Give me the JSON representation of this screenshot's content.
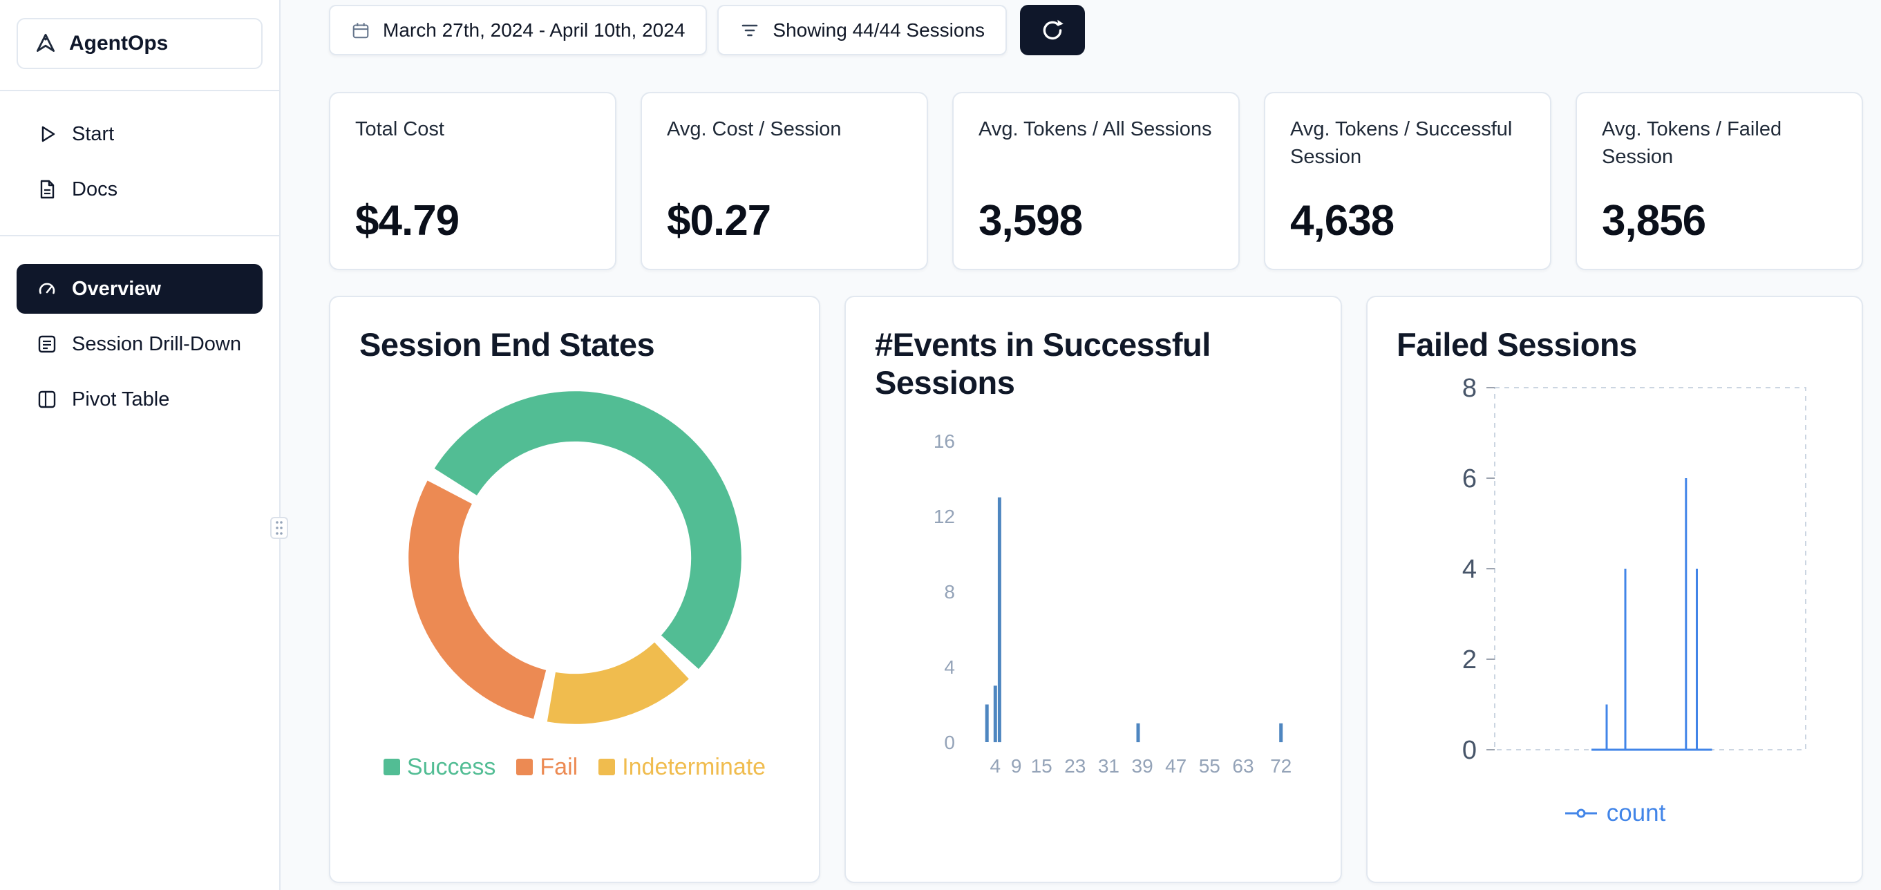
{
  "app": {
    "name": "AgentOps"
  },
  "colors": {
    "accent-dark": "#0f172a",
    "page-bg": "#f8fafc",
    "card-border": "#e2e8f0",
    "card-bg": "#ffffff"
  },
  "sidebar": {
    "links": [
      {
        "label": "Start",
        "icon": "play-icon"
      },
      {
        "label": "Docs",
        "icon": "document-icon"
      }
    ],
    "nav": [
      {
        "label": "Overview",
        "icon": "gauge-icon",
        "active": true
      },
      {
        "label": "Session Drill-Down",
        "icon": "list-icon",
        "active": false
      },
      {
        "label": "Pivot Table",
        "icon": "table-icon",
        "active": false
      }
    ]
  },
  "toolbar": {
    "date_range": "March 27th, 2024 - April 10th, 2024",
    "date_icon": "calendar-icon",
    "sessions": "Showing 44/44 Sessions",
    "sessions_icon": "filter-icon",
    "refresh_icon": "refresh-icon"
  },
  "stats": [
    {
      "label": "Total Cost",
      "value": "$4.79"
    },
    {
      "label": "Avg. Cost / Session",
      "value": "$0.27"
    },
    {
      "label": "Avg. Tokens / All Sessions",
      "value": "3,598"
    },
    {
      "label": "Avg. Tokens / Successful Session",
      "value": "4,638"
    },
    {
      "label": "Avg. Tokens / Failed Session",
      "value": "3,856"
    }
  ],
  "chart_data": [
    {
      "type": "pie",
      "donut": true,
      "title": "Session End States",
      "start_angle_deg_cw_from_top": -60,
      "segments": [
        {
          "label": "Success",
          "pct": 54,
          "color": "#52bd94"
        },
        {
          "label": "Indeterminate",
          "pct": 16,
          "color": "#f0bc4e"
        },
        {
          "label": "Fail",
          "pct": 30,
          "color": "#ec8a53"
        }
      ],
      "legend": [
        "Success",
        "Fail",
        "Indeterminate"
      ],
      "legend_position": "bottom"
    },
    {
      "type": "bar",
      "title": "#Events in Successful Sessions",
      "color": "#4e86c0",
      "x_domain": [
        0,
        76
      ],
      "y_domain": [
        0,
        16
      ],
      "yticks": [
        0,
        4,
        8,
        12,
        16
      ],
      "xticks": [
        4,
        9,
        15,
        23,
        31,
        39,
        47,
        55,
        63,
        72
      ],
      "bars": [
        {
          "x": 2,
          "count": 2
        },
        {
          "x": 4,
          "count": 3
        },
        {
          "x": 5,
          "count": 13
        },
        {
          "x": 38,
          "count": 1
        },
        {
          "x": 72,
          "count": 1
        }
      ],
      "grid": false
    },
    {
      "type": "line",
      "title": "Failed Sessions",
      "series_name": "count",
      "color": "#4285e8",
      "y_domain": [
        0,
        8
      ],
      "yticks": [
        0,
        2,
        4,
        6,
        8
      ],
      "spikes_x_fraction": [
        {
          "xf": 0.36,
          "count": 1
        },
        {
          "xf": 0.42,
          "count": 4
        },
        {
          "xf": 0.615,
          "count": 6
        },
        {
          "xf": 0.65,
          "count": 4
        }
      ],
      "grid": "dashed-border",
      "legend_position": "bottom"
    }
  ]
}
